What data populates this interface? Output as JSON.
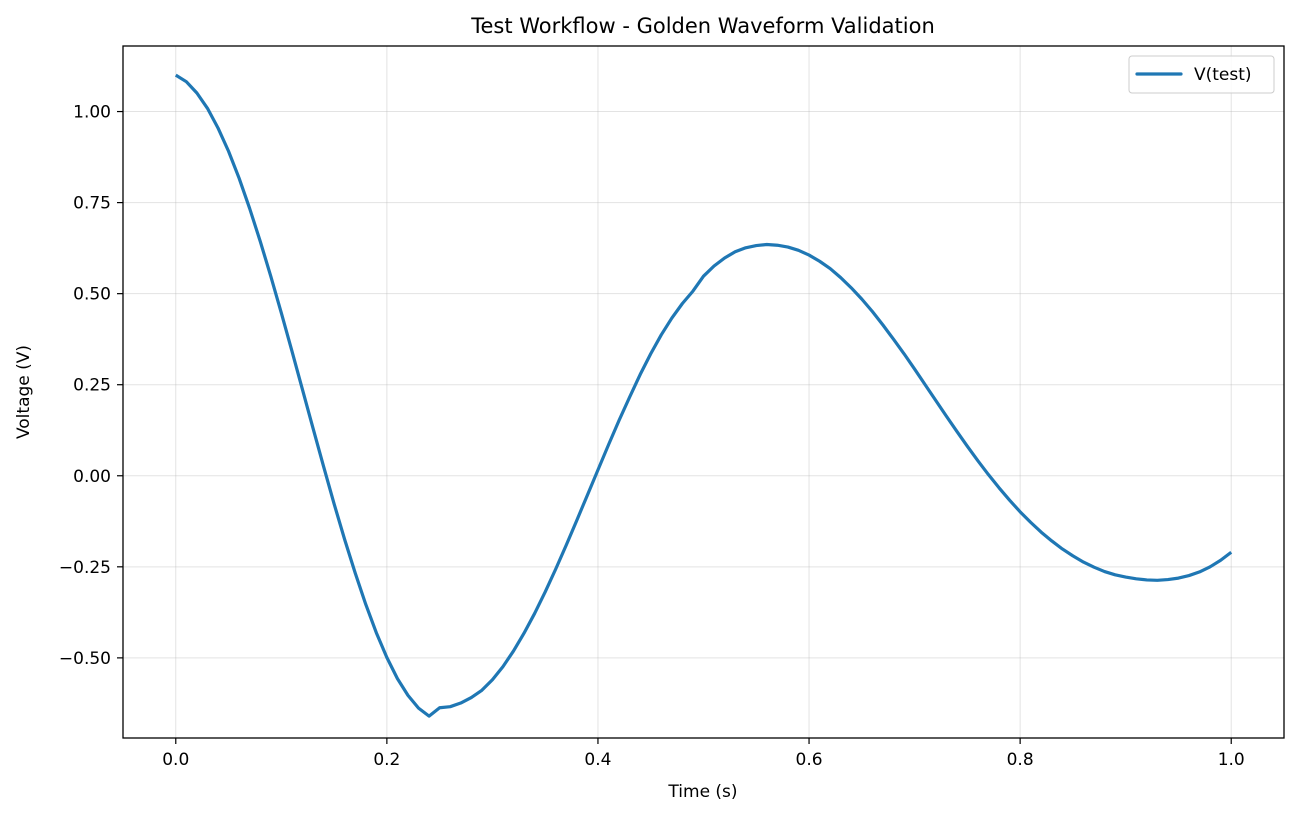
{
  "chart_data": {
    "type": "line",
    "title": "Test Workflow - Golden Waveform Validation",
    "xlabel": "Time (s)",
    "ylabel": "Voltage (V)",
    "xlim": [
      -0.05,
      1.05
    ],
    "ylim": [
      -0.72,
      1.18
    ],
    "x_ticks": [
      0.0,
      0.2,
      0.4,
      0.6,
      0.8,
      1.0
    ],
    "x_tick_labels": [
      "0.0",
      "0.2",
      "0.4",
      "0.6",
      "0.8",
      "1.0"
    ],
    "y_ticks": [
      1.0,
      0.75,
      0.5,
      0.25,
      0.0,
      -0.25,
      -0.5
    ],
    "y_tick_labels": [
      "1.00",
      "0.75",
      "0.50",
      "0.25",
      "0.00",
      "−0.25",
      "−0.50"
    ],
    "grid": true,
    "legend_position": "top-right",
    "series": [
      {
        "name": "V(test)",
        "color": "#1f77b4",
        "x": [
          0.0,
          0.01,
          0.02,
          0.03,
          0.04,
          0.05,
          0.06,
          0.07,
          0.08,
          0.09,
          0.1,
          0.11,
          0.12,
          0.13,
          0.14,
          0.15,
          0.16,
          0.17,
          0.18,
          0.19,
          0.2,
          0.21,
          0.22,
          0.23,
          0.24,
          0.25,
          0.26,
          0.27,
          0.28,
          0.29,
          0.3,
          0.31,
          0.32,
          0.33,
          0.34,
          0.35,
          0.36,
          0.37,
          0.38,
          0.39,
          0.4,
          0.41,
          0.42,
          0.43,
          0.44,
          0.45,
          0.46,
          0.47,
          0.48,
          0.49,
          0.5,
          0.51,
          0.52,
          0.53,
          0.54,
          0.55,
          0.56,
          0.57,
          0.58,
          0.59,
          0.6,
          0.61,
          0.62,
          0.63,
          0.64,
          0.65,
          0.66,
          0.67,
          0.68,
          0.69,
          0.7,
          0.71,
          0.72,
          0.73,
          0.74,
          0.75,
          0.76,
          0.77,
          0.78,
          0.79,
          0.8,
          0.81,
          0.82,
          0.83,
          0.84,
          0.85,
          0.86,
          0.87,
          0.88,
          0.89,
          0.9,
          0.91,
          0.92,
          0.93,
          0.94,
          0.95,
          0.96,
          0.97,
          0.98,
          0.99,
          1.0
        ],
        "y": [
          1.1,
          1.082,
          1.051,
          1.009,
          0.955,
          0.891,
          0.817,
          0.734,
          0.644,
          0.548,
          0.447,
          0.343,
          0.237,
          0.131,
          0.026,
          -0.077,
          -0.175,
          -0.267,
          -0.353,
          -0.431,
          -0.499,
          -0.557,
          -0.603,
          -0.638,
          -0.66,
          -0.637,
          -0.634,
          -0.624,
          -0.609,
          -0.589,
          -0.56,
          -0.524,
          -0.481,
          -0.432,
          -0.378,
          -0.319,
          -0.256,
          -0.19,
          -0.122,
          -0.053,
          0.016,
          0.085,
          0.152,
          0.216,
          0.278,
          0.335,
          0.387,
          0.433,
          0.473,
          0.507,
          0.548,
          0.576,
          0.598,
          0.615,
          0.626,
          0.632,
          0.635,
          0.633,
          0.628,
          0.619,
          0.606,
          0.589,
          0.569,
          0.544,
          0.516,
          0.485,
          0.451,
          0.414,
          0.375,
          0.335,
          0.293,
          0.25,
          0.207,
          0.164,
          0.122,
          0.081,
          0.041,
          0.003,
          -0.033,
          -0.067,
          -0.099,
          -0.128,
          -0.155,
          -0.179,
          -0.201,
          -0.22,
          -0.237,
          -0.251,
          -0.263,
          -0.272,
          -0.278,
          -0.283,
          -0.286,
          -0.287,
          -0.285,
          -0.281,
          -0.274,
          -0.264,
          -0.25,
          -0.232,
          -0.21
        ]
      }
    ]
  }
}
